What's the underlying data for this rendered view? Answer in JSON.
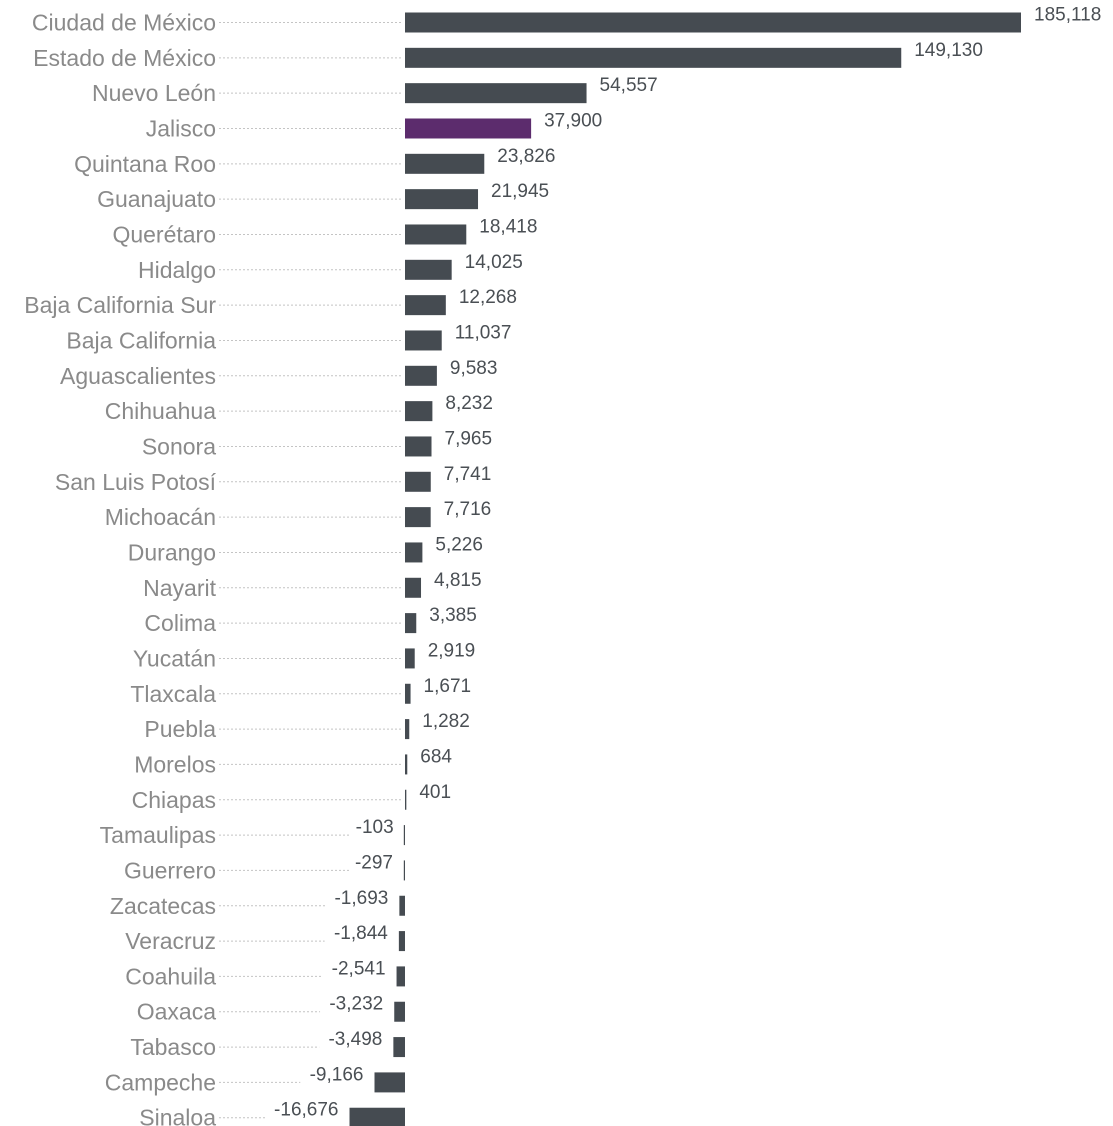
{
  "chart_data": {
    "type": "bar",
    "orientation": "horizontal",
    "categories": [
      "Ciudad de México",
      "Estado de México",
      "Nuevo León",
      "Jalisco",
      "Quintana Roo",
      "Guanajuato",
      "Querétaro",
      "Hidalgo",
      "Baja California Sur",
      "Baja California",
      "Aguascalientes",
      "Chihuahua",
      "Sonora",
      "San Luis Potosí",
      "Michoacán",
      "Durango",
      "Nayarit",
      "Colima",
      "Yucatán",
      "Tlaxcala",
      "Puebla",
      "Morelos",
      "Chiapas",
      "Tamaulipas",
      "Guerrero",
      "Zacatecas",
      "Veracruz",
      "Coahuila",
      "Oaxaca",
      "Tabasco",
      "Campeche",
      "Sinaloa"
    ],
    "values": [
      185118,
      149130,
      54557,
      37900,
      23826,
      21945,
      18418,
      14025,
      12268,
      11037,
      9583,
      8232,
      7965,
      7741,
      7716,
      5226,
      4815,
      3385,
      2919,
      1671,
      1282,
      684,
      401,
      -103,
      -297,
      -1693,
      -1844,
      -2541,
      -3232,
      -3498,
      -9166,
      -16676
    ],
    "value_labels": [
      "185,118",
      "149,130",
      "54,557",
      "37,900",
      "23,826",
      "21,945",
      "18,418",
      "14,025",
      "12,268",
      "11,037",
      "9,583",
      "8,232",
      "7,965",
      "7,741",
      "7,716",
      "5,226",
      "4,815",
      "3,385",
      "2,919",
      "1,671",
      "1,282",
      "684",
      "401",
      "-103",
      "-297",
      "-1,693",
      "-1,844",
      "-2,541",
      "-3,232",
      "-3,498",
      "-9,166",
      "-16,676"
    ],
    "highlight_category": "Jalisco",
    "colors": {
      "bar": "#454b51",
      "highlight": "#5c2c6d"
    },
    "title": "",
    "xlabel": "",
    "ylabel": "",
    "grid": false,
    "legend": "none"
  }
}
